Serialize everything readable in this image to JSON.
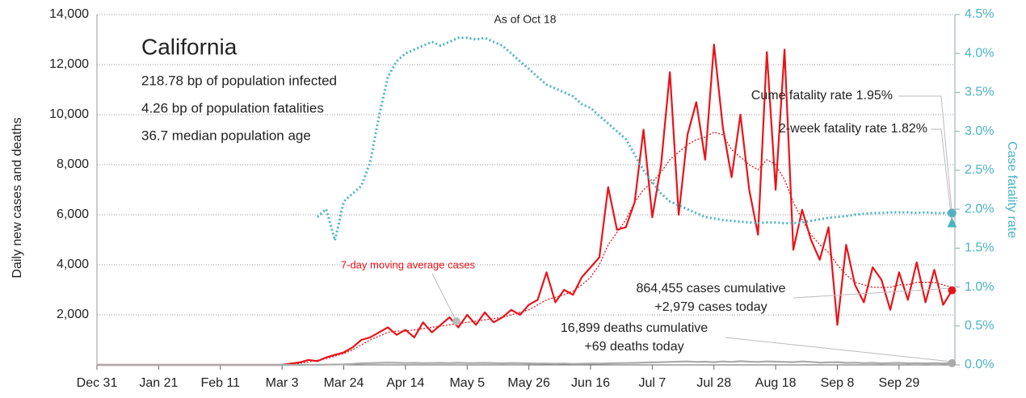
{
  "chart_data": {
    "type": "line",
    "title": "California",
    "subtitle": "As of Oct 18",
    "info_lines": [
      "218.78 bp of population infected",
      "4.26 bp of population fatalities",
      "36.7 median population age"
    ],
    "ylabel": "Daily new cases and deaths",
    "y2label": "Case fatality rate",
    "x": [
      0,
      63,
      66,
      69,
      72,
      75,
      78,
      81,
      84,
      87,
      90,
      93,
      96,
      99,
      102,
      105,
      108,
      111,
      114,
      117,
      120,
      123,
      126,
      129,
      132,
      135,
      138,
      141,
      144,
      147,
      150,
      153,
      156,
      159,
      162,
      165,
      168,
      171,
      174,
      177,
      180,
      183,
      186,
      189,
      192,
      195,
      198,
      201,
      204,
      207,
      210,
      213,
      216,
      219,
      222,
      225,
      228,
      231,
      234,
      237,
      240,
      243,
      246,
      249,
      252,
      255,
      258,
      261,
      264,
      267,
      270,
      273,
      276,
      279,
      282,
      285,
      288,
      291
    ],
    "xlim": [
      0,
      292
    ],
    "xticks": [
      {
        "value": 0,
        "label": "Dec 31"
      },
      {
        "value": 21,
        "label": "Jan 21"
      },
      {
        "value": 42,
        "label": "Feb 11"
      },
      {
        "value": 63,
        "label": "Mar 3"
      },
      {
        "value": 84,
        "label": "Mar 24"
      },
      {
        "value": 105,
        "label": "Apr 14"
      },
      {
        "value": 126,
        "label": "May 5"
      },
      {
        "value": 147,
        "label": "May 26"
      },
      {
        "value": 168,
        "label": "Jun 16"
      },
      {
        "value": 189,
        "label": "Jul 7"
      },
      {
        "value": 210,
        "label": "Jul 28"
      },
      {
        "value": 231,
        "label": "Aug 18"
      },
      {
        "value": 252,
        "label": "Sep 8"
      },
      {
        "value": 273,
        "label": "Sep 29"
      }
    ],
    "ylim": [
      0,
      14000
    ],
    "yticks": [
      {
        "value": 2000,
        "label": "2,000"
      },
      {
        "value": 4000,
        "label": "4,000"
      },
      {
        "value": 6000,
        "label": "6,000"
      },
      {
        "value": 8000,
        "label": "8,000"
      },
      {
        "value": 10000,
        "label": "10,000"
      },
      {
        "value": 12000,
        "label": "12,000"
      },
      {
        "value": 14000,
        "label": "14,000"
      }
    ],
    "y2lim": [
      0,
      4.5
    ],
    "y2ticks": [
      {
        "value": 0,
        "label": "0.0%"
      },
      {
        "value": 0.5,
        "label": "0.5%"
      },
      {
        "value": 1,
        "label": "1.0%"
      },
      {
        "value": 1.5,
        "label": "1.5%"
      },
      {
        "value": 2,
        "label": "2.0%"
      },
      {
        "value": 2.5,
        "label": "2.5%"
      },
      {
        "value": 3,
        "label": "3.0%"
      },
      {
        "value": 3.5,
        "label": "3.5%"
      },
      {
        "value": 4,
        "label": "4.0%"
      },
      {
        "value": 4.5,
        "label": "4.5%"
      }
    ],
    "grid": true,
    "series": [
      {
        "color": "#e8141a",
        "style": "solid",
        "values": [
          0,
          0,
          50,
          100,
          200,
          150,
          300,
          400,
          500,
          700,
          1000,
          1100,
          1300,
          1500,
          1200,
          1400,
          1100,
          1700,
          1300,
          1600,
          1900,
          1500,
          2000,
          1600,
          2100,
          1700,
          1900,
          2200,
          2000,
          2400,
          2600,
          3700,
          2500,
          3000,
          2800,
          3500,
          3900,
          4300,
          7100,
          5400,
          5500,
          6500,
          9400,
          5900,
          8000,
          11700,
          6000,
          9200,
          10500,
          8200,
          12800,
          9500,
          7500,
          10000,
          7000,
          5200,
          12500,
          7000,
          12600,
          4600,
          6200,
          5000,
          4200,
          5500,
          1600,
          4800,
          3200,
          2500,
          3900,
          3400,
          2200,
          3700,
          2600,
          4100,
          2500,
          3800,
          2400,
          2979
        ]
      },
      {
        "color": "#e8141a",
        "style": "dotted",
        "values": [
          0,
          0,
          20,
          60,
          120,
          180,
          250,
          350,
          450,
          600,
          800,
          1000,
          1150,
          1300,
          1350,
          1350,
          1400,
          1450,
          1500,
          1550,
          1600,
          1650,
          1700,
          1750,
          1800,
          1850,
          1900,
          2000,
          2100,
          2200,
          2400,
          2600,
          2700,
          2800,
          2950,
          3200,
          3500,
          4000,
          4800,
          5300,
          5800,
          6500,
          7000,
          7300,
          7700,
          8200,
          8500,
          8800,
          9000,
          9100,
          9300,
          9200,
          8600,
          8300,
          8000,
          7800,
          8200,
          8000,
          7400,
          6500,
          5800,
          5200,
          4800,
          4500,
          4000,
          3600,
          3300,
          3200,
          3100,
          3100,
          3100,
          3200,
          3200,
          3300,
          3300,
          3300,
          3200,
          3100
        ]
      },
      {
        "color": "#aaaaaa",
        "style": "solid",
        "values": [
          0,
          0,
          0,
          0,
          5,
          5,
          10,
          15,
          20,
          40,
          60,
          70,
          80,
          90,
          85,
          75,
          80,
          70,
          75,
          80,
          70,
          85,
          70,
          75,
          80,
          70,
          65,
          75,
          70,
          60,
          55,
          50,
          45,
          55,
          40,
          45,
          50,
          55,
          60,
          70,
          75,
          80,
          90,
          100,
          110,
          120,
          130,
          140,
          120,
          130,
          110,
          140,
          120,
          150,
          130,
          120,
          140,
          130,
          120,
          110,
          140,
          120,
          90,
          100,
          110,
          80,
          90,
          70,
          80,
          60,
          70,
          80,
          60,
          70,
          60,
          70,
          60,
          69
        ]
      },
      {
        "color": "#4bb3c3",
        "style": "dotted",
        "axis": "y2",
        "values": [
          null,
          null,
          null,
          null,
          null,
          1.9,
          2.0,
          1.6,
          2.1,
          2.2,
          2.3,
          2.6,
          3.2,
          3.7,
          3.9,
          4.0,
          4.05,
          4.1,
          4.15,
          4.1,
          4.15,
          4.2,
          4.2,
          4.18,
          4.2,
          4.15,
          4.1,
          4.0,
          3.9,
          3.8,
          3.7,
          3.6,
          3.55,
          3.5,
          3.45,
          3.35,
          3.3,
          3.2,
          3.1,
          3.0,
          2.9,
          2.7,
          2.5,
          2.35,
          2.2,
          2.1,
          2.05,
          2.0,
          1.95,
          1.9,
          1.88,
          1.86,
          1.85,
          1.84,
          1.83,
          1.82,
          1.83,
          1.83,
          1.82,
          1.82,
          1.83,
          1.85,
          1.87,
          1.89,
          1.9,
          1.91,
          1.93,
          1.94,
          1.95,
          1.95,
          1.96,
          1.96,
          1.96,
          1.95,
          1.96,
          1.95,
          1.95,
          1.95
        ]
      }
    ],
    "end_points": {
      "cases_today": 2979,
      "deaths_today": 69,
      "cume_fatality_rate": 1.95,
      "two_week_fatality_rate": 1.82
    },
    "annotations": [
      "7-day moving average cases",
      "864,455 cases cumulative",
      "+2,979 cases today",
      "16,899 deaths cumulative",
      "+69 deaths today",
      "Cume fatality rate 1.95%",
      "2-week fatality rate 1.82%"
    ]
  }
}
